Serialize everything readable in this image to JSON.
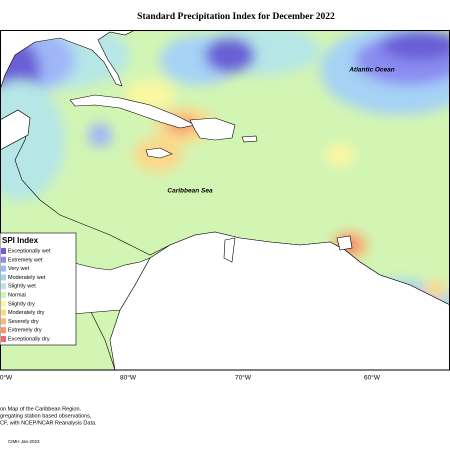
{
  "title": "Standard Precipitation Index for December 2022",
  "labels": {
    "ocean": "Atlantic Ocean",
    "sea": "Caribbean Sea"
  },
  "legend": {
    "title": "SPI Index",
    "items": [
      {
        "label": "Exceptionally wet",
        "color": "#6b5fd6"
      },
      {
        "label": "Extremely wet",
        "color": "#8a8cf2"
      },
      {
        "label": "Very wet",
        "color": "#9fb6f7"
      },
      {
        "label": "Moderately wet",
        "color": "#a6d2f5"
      },
      {
        "label": "Slightly wet",
        "color": "#b6e6e6"
      },
      {
        "label": "Normal",
        "color": "#d2f5b4"
      },
      {
        "label": "Slightly dry",
        "color": "#fbf7a0"
      },
      {
        "label": "Moderately dry",
        "color": "#fbd98a"
      },
      {
        "label": "Severely dry",
        "color": "#f8b878"
      },
      {
        "label": "Extremely dry",
        "color": "#f59470"
      },
      {
        "label": "Exceptionally dry",
        "color": "#f06a6a"
      }
    ]
  },
  "longitudes": [
    "0°W",
    "80°W",
    "70°W",
    "60°W"
  ],
  "footnotes": [
    "on Map of the Caribbean Region.",
    "gregating station based observations,",
    "CF, with NCEP/NCAR Reanalysis Data.",
    "CIMH Jan-2023"
  ]
}
